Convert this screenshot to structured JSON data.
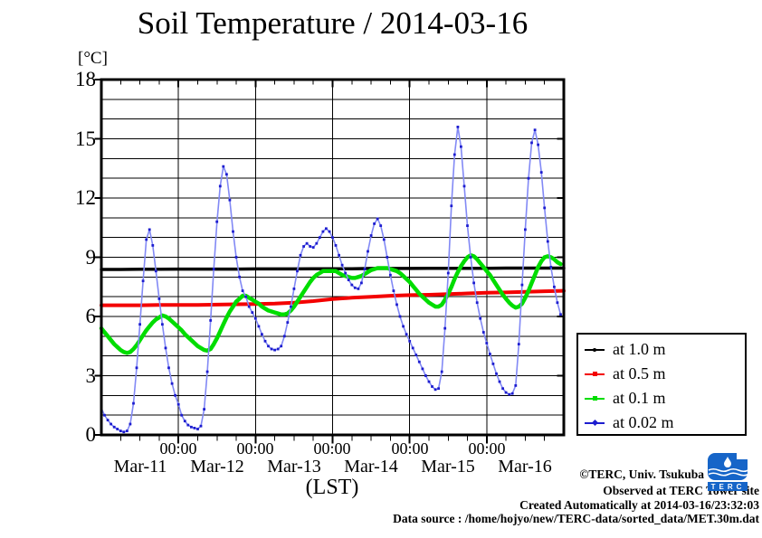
{
  "title": "Soil Temperature / 2014-03-16",
  "y_axis": {
    "unit_label": "[°C]",
    "tick_labels": [
      "18",
      "15",
      "12",
      "9",
      "6",
      "3",
      "0"
    ]
  },
  "x_axis": {
    "time_tick_label": "00:00",
    "day_labels": [
      "Mar-11",
      "Mar-12",
      "Mar-13",
      "Mar-14",
      "Mar-15",
      "Mar-16"
    ],
    "axis_label": "(LST)"
  },
  "legend": {
    "items": [
      {
        "label": "at 1.0 m",
        "color": "#000000",
        "marker": "dot"
      },
      {
        "label": "at 0.5 m",
        "color": "#f30000",
        "marker": "square"
      },
      {
        "label": "at 0.1 m",
        "color": "#00dd00",
        "marker": "square"
      },
      {
        "label": "at 0.02 m",
        "color": "#1d1dcf",
        "marker": "diamond"
      }
    ]
  },
  "footer": {
    "copyright": "©TERC, Univ. Tsukuba",
    "observed": "Observed at TERC Tower site",
    "created": "Created Automatically at 2014-03-16/23:32:03",
    "datasource": "Data source : /home/hojyo/new/TERC-data/sorted_data/MET.30m.dat",
    "logo_text": "TERC"
  },
  "chart_data": {
    "type": "line",
    "title": "Soil Temperature / 2014-03-16",
    "xlabel": "(LST)",
    "ylabel": "[°C]",
    "x_unit": "hours since 2014-03-11 00:00 LST",
    "xlim": [
      0,
      144
    ],
    "ylim": [
      0,
      18
    ],
    "y_major_step": 3,
    "y_minor_step": 1,
    "x_major_step_hours": 24,
    "x_minor_step_hours": 6,
    "grid": "on",
    "legend_position": "outside-right-bottom",
    "series": [
      {
        "name": "at 1.0 m",
        "depth_m": 1.0,
        "color": "#000000",
        "line_width": 3.5,
        "markers": false,
        "x_start": 0,
        "x_step": 6,
        "values": [
          8.38,
          8.38,
          8.39,
          8.39,
          8.4,
          8.4,
          8.4,
          8.4,
          8.41,
          8.41,
          8.41,
          8.42,
          8.42,
          8.42,
          8.43,
          8.43,
          8.43,
          8.44,
          8.44,
          8.44,
          8.44,
          8.45,
          8.45,
          8.45,
          8.45
        ]
      },
      {
        "name": "at 0.5 m",
        "depth_m": 0.5,
        "color": "#f30000",
        "line_width": 4,
        "markers": false,
        "x_start": 0,
        "x_step": 6,
        "values": [
          6.57,
          6.57,
          6.57,
          6.58,
          6.58,
          6.58,
          6.6,
          6.62,
          6.63,
          6.65,
          6.7,
          6.78,
          6.88,
          6.95,
          7.0,
          7.05,
          7.08,
          7.1,
          7.13,
          7.17,
          7.2,
          7.22,
          7.25,
          7.28,
          7.3
        ]
      },
      {
        "name": "at 0.1 m",
        "depth_m": 0.1,
        "color": "#00dd00",
        "line_width": 4.5,
        "markers": false,
        "x_start": 0,
        "x_step": 1,
        "values": [
          5.4,
          5.2,
          5.0,
          4.8,
          4.6,
          4.45,
          4.3,
          4.2,
          4.15,
          4.2,
          4.35,
          4.55,
          4.8,
          5.05,
          5.3,
          5.5,
          5.7,
          5.85,
          5.95,
          6.05,
          6.0,
          5.9,
          5.75,
          5.6,
          5.45,
          5.3,
          5.1,
          4.95,
          4.8,
          4.65,
          4.5,
          4.4,
          4.3,
          4.27,
          4.35,
          4.6,
          4.9,
          5.25,
          5.6,
          5.95,
          6.25,
          6.5,
          6.75,
          6.9,
          7.05,
          7.05,
          6.95,
          6.85,
          6.75,
          6.65,
          6.5,
          6.4,
          6.3,
          6.25,
          6.2,
          6.15,
          6.1,
          6.1,
          6.15,
          6.3,
          6.5,
          6.75,
          7.0,
          7.25,
          7.5,
          7.75,
          7.95,
          8.1,
          8.2,
          8.3,
          8.3,
          8.3,
          8.3,
          8.3,
          8.2,
          8.1,
          8.05,
          8.0,
          7.95,
          7.95,
          8.0,
          8.05,
          8.15,
          8.25,
          8.35,
          8.4,
          8.45,
          8.45,
          8.45,
          8.45,
          8.4,
          8.35,
          8.3,
          8.2,
          8.05,
          7.9,
          7.75,
          7.55,
          7.35,
          7.15,
          7.0,
          6.85,
          6.7,
          6.6,
          6.5,
          6.5,
          6.6,
          6.85,
          7.15,
          7.5,
          7.9,
          8.25,
          8.55,
          8.8,
          9.0,
          9.1,
          9.05,
          8.9,
          8.7,
          8.5,
          8.3,
          8.1,
          7.85,
          7.6,
          7.35,
          7.1,
          6.9,
          6.7,
          6.55,
          6.45,
          6.5,
          6.65,
          6.95,
          7.3,
          7.7,
          8.1,
          8.5,
          8.8,
          9.0,
          9.05,
          9.0,
          8.9,
          8.75,
          8.65
        ]
      },
      {
        "name": "at 0.02 m",
        "depth_m": 0.02,
        "color": "#8289f5",
        "marker_color": "#1d1dcf",
        "line_width": 1.6,
        "markers": true,
        "marker_size": 2.8,
        "x_start": 0,
        "x_step": 1,
        "values": [
          1.35,
          1.0,
          0.75,
          0.55,
          0.4,
          0.3,
          0.2,
          0.15,
          0.2,
          0.55,
          1.6,
          3.4,
          5.6,
          7.8,
          9.9,
          10.4,
          9.6,
          8.3,
          6.9,
          5.6,
          4.4,
          3.4,
          2.6,
          2.0,
          1.55,
          1.0,
          0.7,
          0.5,
          0.4,
          0.35,
          0.3,
          0.45,
          1.3,
          3.2,
          5.8,
          8.4,
          10.8,
          12.6,
          13.6,
          13.2,
          11.9,
          10.3,
          9.0,
          8.0,
          7.3,
          7.0,
          6.5,
          6.2,
          5.9,
          5.5,
          5.1,
          4.75,
          4.5,
          4.35,
          4.3,
          4.35,
          4.5,
          5.0,
          5.7,
          6.5,
          7.4,
          8.3,
          9.1,
          9.55,
          9.7,
          9.55,
          9.5,
          9.7,
          10.0,
          10.3,
          10.45,
          10.3,
          10.0,
          9.6,
          9.1,
          8.6,
          8.2,
          7.85,
          7.6,
          7.45,
          7.4,
          7.7,
          8.4,
          9.3,
          10.1,
          10.7,
          10.95,
          10.6,
          9.9,
          9.0,
          8.1,
          7.3,
          6.6,
          6.0,
          5.5,
          5.1,
          4.75,
          4.4,
          4.05,
          3.7,
          3.35,
          3.0,
          2.7,
          2.45,
          2.3,
          2.35,
          3.2,
          5.4,
          8.2,
          11.6,
          14.2,
          15.6,
          14.6,
          12.6,
          10.6,
          9.0,
          7.7,
          6.7,
          5.9,
          5.2,
          4.65,
          4.1,
          3.6,
          3.1,
          2.7,
          2.35,
          2.15,
          2.05,
          2.1,
          2.5,
          4.6,
          7.6,
          10.4,
          13.0,
          14.8,
          15.45,
          14.7,
          13.3,
          11.5,
          9.8,
          8.5,
          7.5,
          6.7,
          6.1
        ]
      }
    ]
  }
}
